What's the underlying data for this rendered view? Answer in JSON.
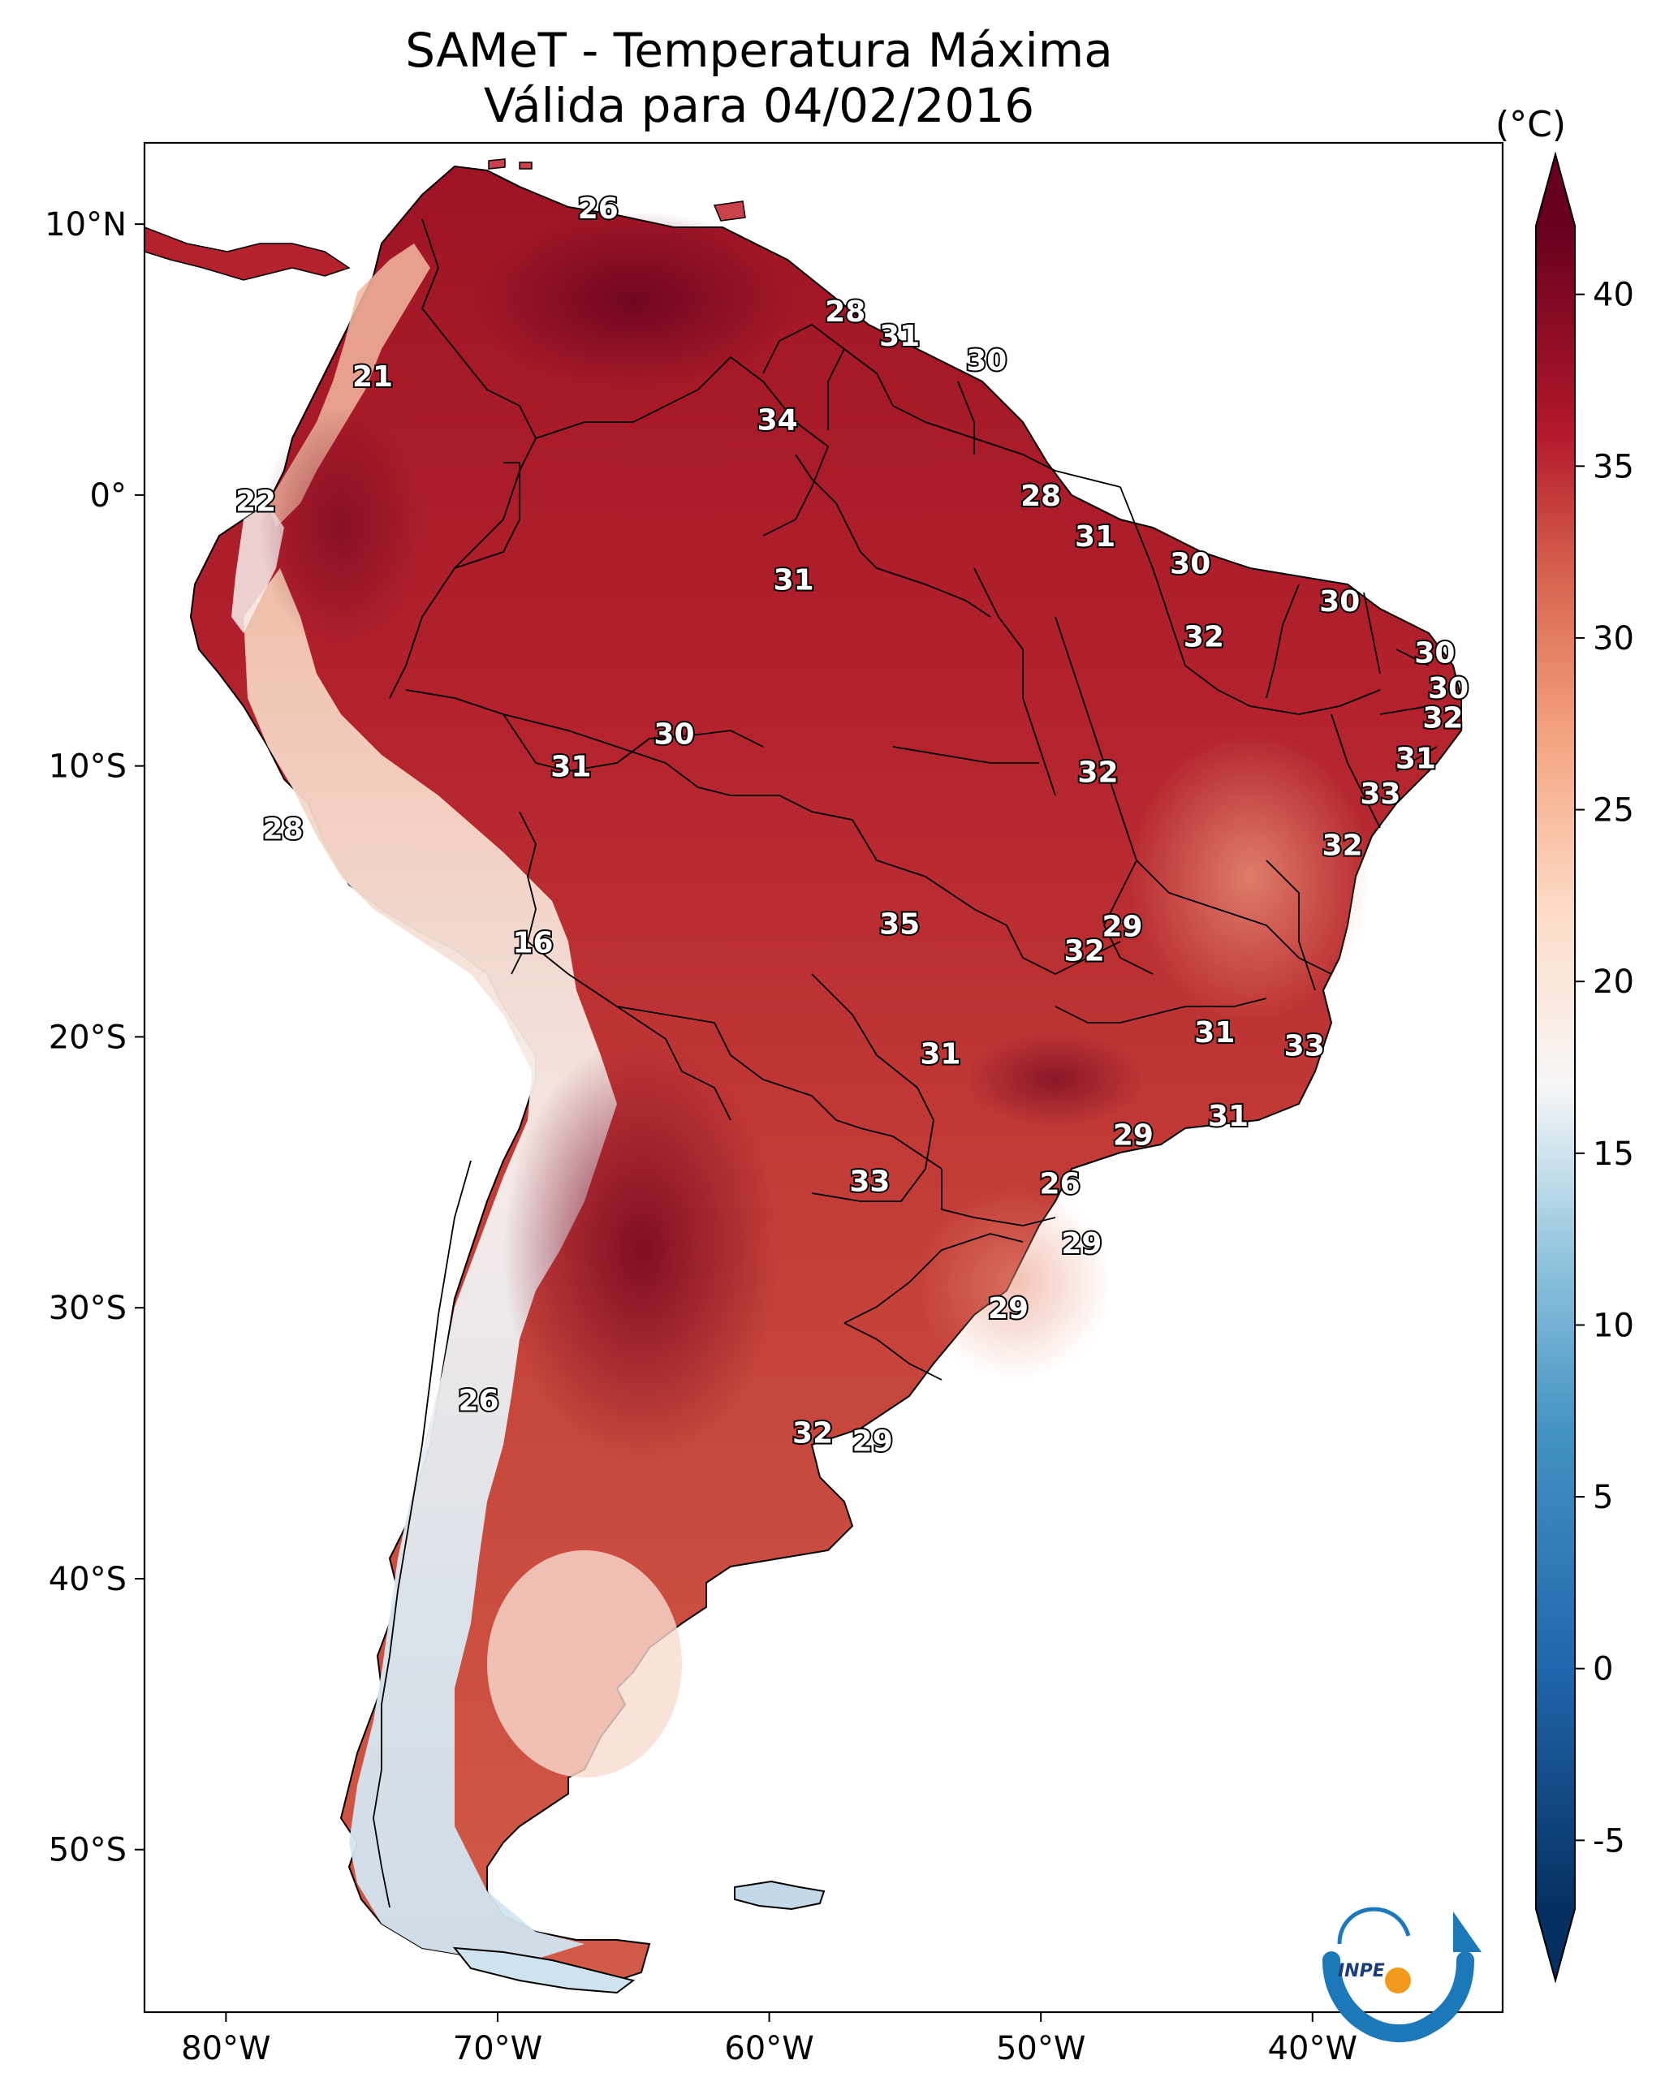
{
  "title": {
    "line1": "SAMeT - Temperatura Máxima",
    "line2": "Válida para 04/02/2016"
  },
  "colorbar": {
    "unit": "(°C)",
    "ticks": [
      "40",
      "35",
      "30",
      "25",
      "20",
      "15",
      "10",
      "5",
      "0",
      "-5"
    ],
    "min": -7,
    "max": 42,
    "stops": [
      {
        "v": -7,
        "c": "#053061"
      },
      {
        "v": 0,
        "c": "#2166ac"
      },
      {
        "v": 7,
        "c": "#4393c3"
      },
      {
        "v": 12,
        "c": "#92c5de"
      },
      {
        "v": 17,
        "c": "#f7f7f7"
      },
      {
        "v": 22,
        "c": "#fddbc7"
      },
      {
        "v": 27,
        "c": "#f4a582"
      },
      {
        "v": 32,
        "c": "#d6604d"
      },
      {
        "v": 36,
        "c": "#b2182b"
      },
      {
        "v": 42,
        "c": "#67001f"
      }
    ]
  },
  "axes": {
    "lon_ticks": [
      "80°W",
      "70°W",
      "60°W",
      "50°W",
      "40°W"
    ],
    "lat_ticks": [
      "10°N",
      "0°",
      "10°S",
      "20°S",
      "30°S",
      "40°S",
      "50°S"
    ]
  },
  "logo": {
    "text": "INPE"
  },
  "station_labels": [
    {
      "t": "26",
      "lon": -66.3,
      "lat": 10.6
    },
    {
      "t": "21",
      "lon": -74.6,
      "lat": 4.4
    },
    {
      "t": "22",
      "lon": -78.9,
      "lat": -0.2
    },
    {
      "t": "28",
      "lon": -57.2,
      "lat": 6.8
    },
    {
      "t": "31",
      "lon": -55.2,
      "lat": 5.9
    },
    {
      "t": "30",
      "lon": -52.0,
      "lat": 5.0
    },
    {
      "t": "34",
      "lon": -59.7,
      "lat": 2.8
    },
    {
      "t": "28",
      "lon": -50.0,
      "lat": 0.0
    },
    {
      "t": "31",
      "lon": -48.0,
      "lat": -1.5
    },
    {
      "t": "30",
      "lon": -44.5,
      "lat": -2.5
    },
    {
      "t": "30",
      "lon": -39.0,
      "lat": -3.9
    },
    {
      "t": "31",
      "lon": -59.1,
      "lat": -3.1
    },
    {
      "t": "32",
      "lon": -44.0,
      "lat": -5.2
    },
    {
      "t": "30",
      "lon": -35.5,
      "lat": -5.8
    },
    {
      "t": "30",
      "lon": -35.0,
      "lat": -7.1
    },
    {
      "t": "32",
      "lon": -35.2,
      "lat": -8.2
    },
    {
      "t": "31",
      "lon": -36.2,
      "lat": -9.7
    },
    {
      "t": "33",
      "lon": -37.5,
      "lat": -11.0
    },
    {
      "t": "32",
      "lon": -38.9,
      "lat": -12.9
    },
    {
      "t": "30",
      "lon": -63.5,
      "lat": -8.8
    },
    {
      "t": "31",
      "lon": -67.3,
      "lat": -10.0
    },
    {
      "t": "32",
      "lon": -47.9,
      "lat": -10.2
    },
    {
      "t": "28",
      "lon": -77.9,
      "lat": -12.3
    },
    {
      "t": "16",
      "lon": -68.7,
      "lat": -16.5
    },
    {
      "t": "35",
      "lon": -55.2,
      "lat": -15.8
    },
    {
      "t": "29",
      "lon": -47.0,
      "lat": -15.9
    },
    {
      "t": "32",
      "lon": -48.4,
      "lat": -16.8
    },
    {
      "t": "31",
      "lon": -43.6,
      "lat": -19.8
    },
    {
      "t": "33",
      "lon": -40.3,
      "lat": -20.3
    },
    {
      "t": "31",
      "lon": -53.7,
      "lat": -20.6
    },
    {
      "t": "31",
      "lon": -43.1,
      "lat": -22.9
    },
    {
      "t": "29",
      "lon": -46.6,
      "lat": -23.6
    },
    {
      "t": "33",
      "lon": -56.3,
      "lat": -25.3
    },
    {
      "t": "26",
      "lon": -49.3,
      "lat": -25.4
    },
    {
      "t": "29",
      "lon": -48.5,
      "lat": -27.6
    },
    {
      "t": "29",
      "lon": -51.2,
      "lat": -30.0
    },
    {
      "t": "26",
      "lon": -70.7,
      "lat": -33.4
    },
    {
      "t": "32",
      "lon": -58.4,
      "lat": -34.6
    },
    {
      "t": "29",
      "lon": -56.2,
      "lat": -34.9
    }
  ]
}
